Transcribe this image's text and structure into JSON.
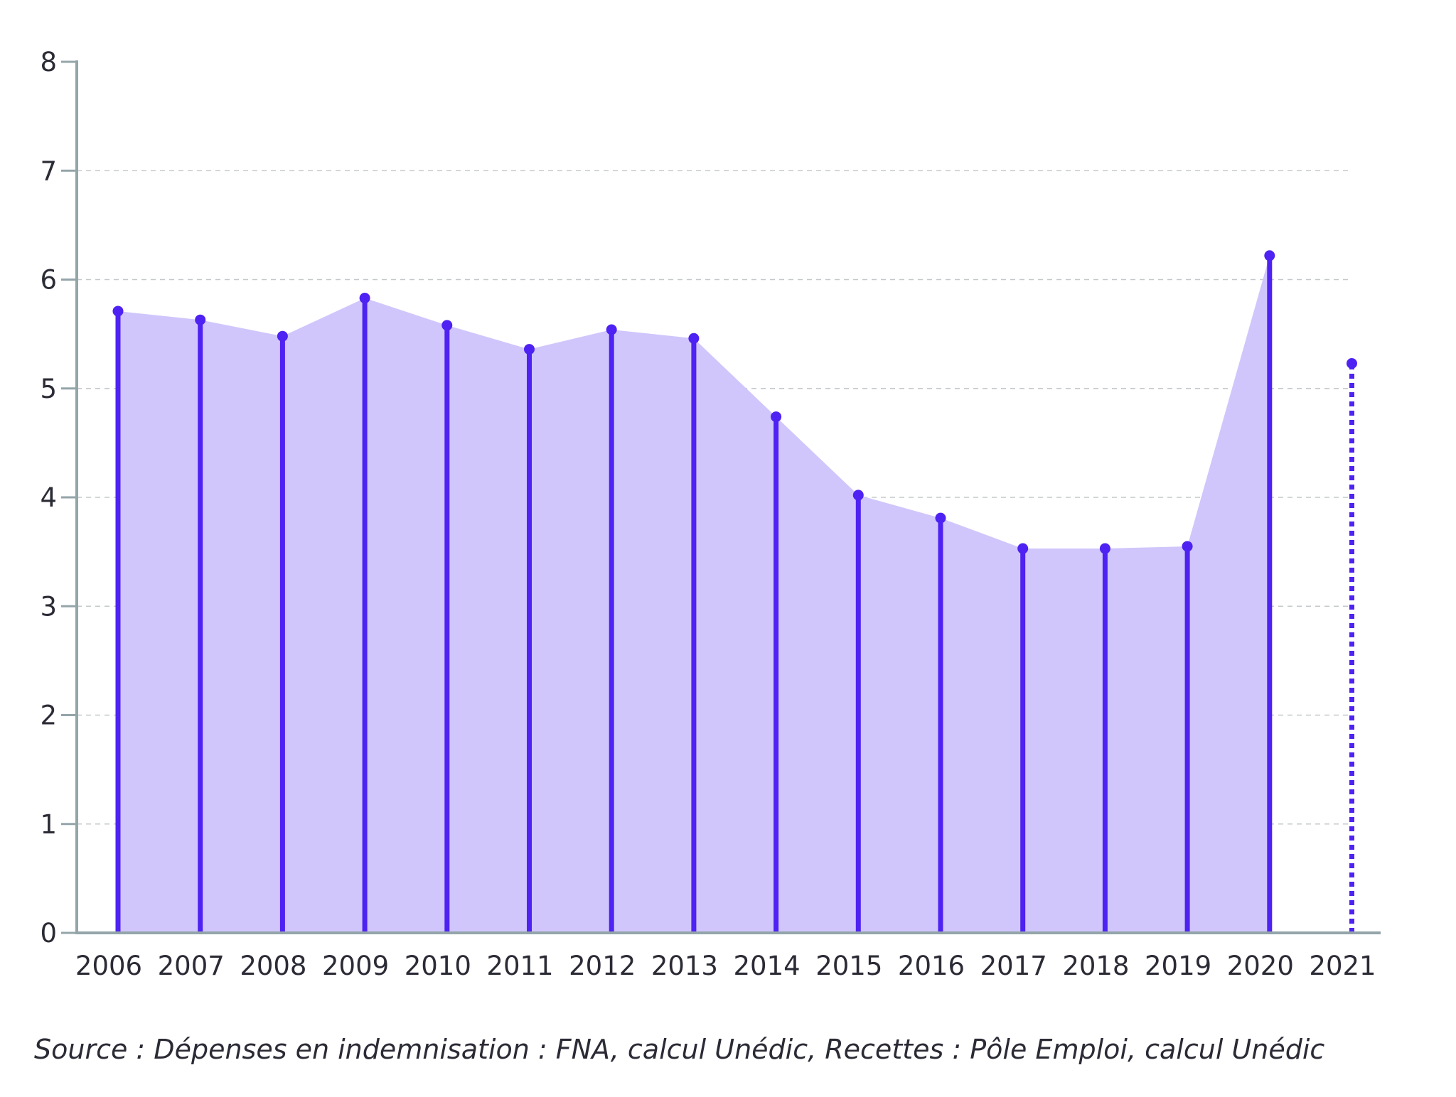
{
  "chart_data": {
    "type": "line",
    "title": "",
    "xlabel": "",
    "ylabel": "",
    "ylim": [
      0,
      8
    ],
    "yticks": [
      0,
      1,
      2,
      3,
      4,
      5,
      6,
      7,
      8
    ],
    "grid": true,
    "categories": [
      "2006",
      "2007",
      "2008",
      "2009",
      "2010",
      "2011",
      "2012",
      "2013",
      "2014",
      "2015",
      "2016",
      "2017",
      "2018",
      "2019",
      "2020",
      "2021"
    ],
    "series": [
      {
        "values": [
          5.71,
          5.63,
          5.48,
          5.83,
          5.58,
          5.36,
          5.54,
          5.46,
          4.74,
          4.02,
          3.81,
          3.53,
          3.53,
          3.55,
          6.22,
          5.23
        ],
        "projected": [
          false,
          false,
          false,
          false,
          false,
          false,
          false,
          false,
          false,
          false,
          false,
          false,
          false,
          false,
          false,
          true
        ]
      }
    ],
    "colors": {
      "line": "#4e22f2",
      "area": "#d0c6fc",
      "axis": "#94a5aa",
      "grid": "#c4c8ca"
    }
  },
  "source": "Source : Dépenses en indemnisation : FNA, calcul Unédic, Recettes : Pôle Emploi, calcul Unédic"
}
